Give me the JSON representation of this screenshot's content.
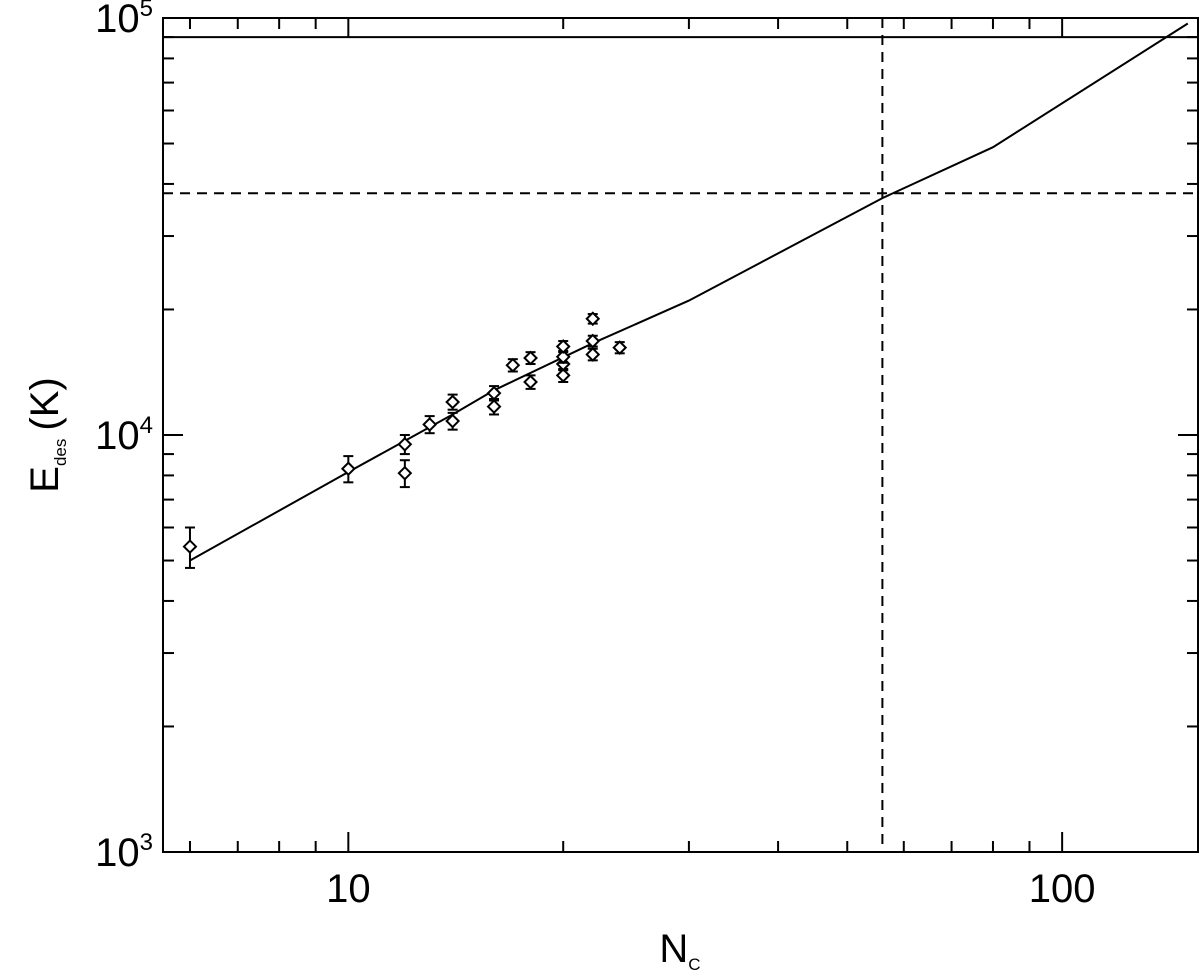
{
  "chart_data": {
    "type": "scatter",
    "xlabel": {
      "main": "N",
      "sub": "C"
    },
    "ylabel": {
      "main": "E",
      "sub": "des",
      "unit": "(K)"
    },
    "x_scale": "log",
    "y_scale": "log",
    "xlim": [
      5.5,
      155
    ],
    "ylim": [
      1000,
      100000
    ],
    "x_ticks": [
      {
        "value": 10,
        "label": "10"
      },
      {
        "value": 100,
        "label": "100"
      }
    ],
    "y_ticks": [
      {
        "value": 1000,
        "base": "10",
        "exp": "3"
      },
      {
        "value": 10000,
        "base": "10",
        "exp": "4"
      },
      {
        "value": 100000,
        "base": "10",
        "exp": "5"
      }
    ],
    "points": [
      {
        "x": 6,
        "y": 5400,
        "err": 600
      },
      {
        "x": 10,
        "y": 8300,
        "err": 600
      },
      {
        "x": 12,
        "y": 8100,
        "err": 600
      },
      {
        "x": 12,
        "y": 9500,
        "err": 500
      },
      {
        "x": 13,
        "y": 10600,
        "err": 500
      },
      {
        "x": 14,
        "y": 10800,
        "err": 500
      },
      {
        "x": 14,
        "y": 12000,
        "err": 500
      },
      {
        "x": 16,
        "y": 11700,
        "err": 500
      },
      {
        "x": 16,
        "y": 12600,
        "err": 500
      },
      {
        "x": 17,
        "y": 14700,
        "err": 500
      },
      {
        "x": 18,
        "y": 13400,
        "err": 500
      },
      {
        "x": 18,
        "y": 15300,
        "err": 500
      },
      {
        "x": 20,
        "y": 13900,
        "err": 500
      },
      {
        "x": 20,
        "y": 14800,
        "err": 500
      },
      {
        "x": 20,
        "y": 15400,
        "err": 500
      },
      {
        "x": 20,
        "y": 16300,
        "err": 500
      },
      {
        "x": 22,
        "y": 15600,
        "err": 500
      },
      {
        "x": 22,
        "y": 16800,
        "err": 500
      },
      {
        "x": 22,
        "y": 19000,
        "err": 500
      },
      {
        "x": 24,
        "y": 16200,
        "err": 500
      }
    ],
    "fit_curve": [
      {
        "x": 6,
        "y": 5000
      },
      {
        "x": 10,
        "y": 8150
      },
      {
        "x": 14,
        "y": 11200
      },
      {
        "x": 16,
        "y": 12800
      },
      {
        "x": 22,
        "y": 16600
      },
      {
        "x": 30,
        "y": 21000
      },
      {
        "x": 56,
        "y": 37000
      },
      {
        "x": 80,
        "y": 49000
      },
      {
        "x": 150,
        "y": 97000
      }
    ],
    "reference_lines": [
      {
        "orientation": "horizontal",
        "value": 90000,
        "style": "solid"
      },
      {
        "orientation": "horizontal",
        "value": 38000,
        "style": "dashed"
      },
      {
        "orientation": "vertical",
        "value": 56,
        "style": "dashed"
      }
    ]
  }
}
